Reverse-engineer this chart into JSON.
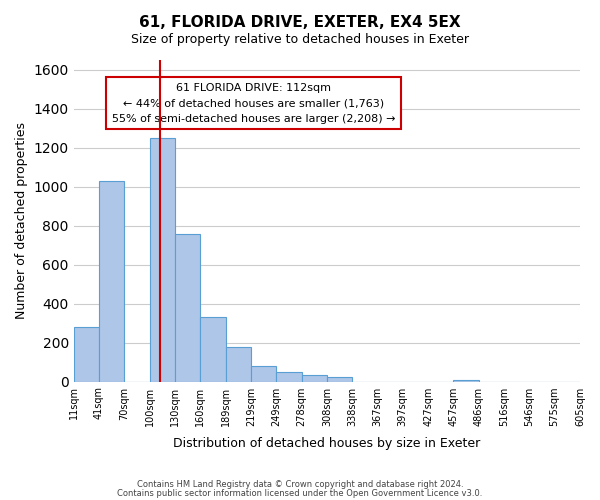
{
  "title": "61, FLORIDA DRIVE, EXETER, EX4 5EX",
  "subtitle": "Size of property relative to detached houses in Exeter",
  "xlabel": "Distribution of detached houses by size in Exeter",
  "ylabel": "Number of detached properties",
  "bin_labels": [
    "11sqm",
    "41sqm",
    "70sqm",
    "100sqm",
    "130sqm",
    "160sqm",
    "189sqm",
    "219sqm",
    "249sqm",
    "278sqm",
    "308sqm",
    "338sqm",
    "367sqm",
    "397sqm",
    "427sqm",
    "457sqm",
    "486sqm",
    "516sqm",
    "546sqm",
    "575sqm",
    "605sqm"
  ],
  "bar_heights": [
    280,
    1030,
    0,
    1250,
    755,
    330,
    175,
    80,
    48,
    35,
    22,
    0,
    0,
    0,
    0,
    8,
    0,
    0,
    0,
    0
  ],
  "bar_color": "#aec6e8",
  "bar_edge_color": "#5a9fd4",
  "ylim": [
    0,
    1650
  ],
  "yticks": [
    0,
    200,
    400,
    600,
    800,
    1000,
    1200,
    1400,
    1600
  ],
  "vline_color": "#cc0000",
  "vline_x": 3.4,
  "annotation_title": "61 FLORIDA DRIVE: 112sqm",
  "annotation_line1": "← 44% of detached houses are smaller (1,763)",
  "annotation_line2": "55% of semi-detached houses are larger (2,208) →",
  "annotation_box_color": "#ffffff",
  "annotation_box_edge": "#cc0000",
  "footer1": "Contains HM Land Registry data © Crown copyright and database right 2024.",
  "footer2": "Contains public sector information licensed under the Open Government Licence v3.0.",
  "background_color": "#ffffff",
  "grid_color": "#cccccc"
}
